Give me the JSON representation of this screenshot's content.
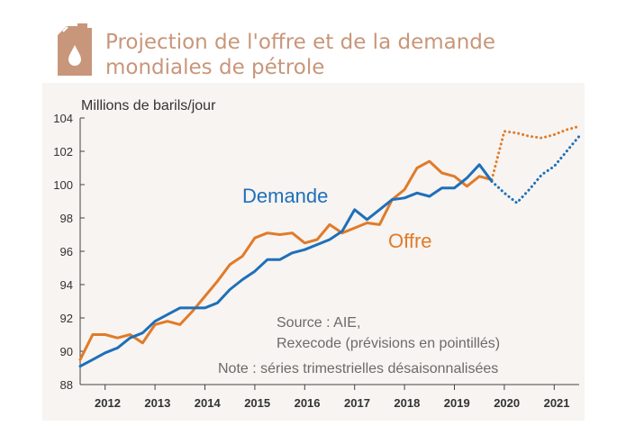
{
  "header": {
    "title_line_1": "Projection de l'offre et de la demande",
    "title_line_2": "mondiales de pétrole",
    "icon": "oil-can-icon",
    "accent_color": "#c8967a"
  },
  "chart_data": {
    "type": "line",
    "title": "Projection de l'offre et de la demande mondiales de pétrole",
    "ylabel": "Millions de barils/jour",
    "xlabel": "",
    "ylim": [
      88,
      104
    ],
    "yticks": [
      88,
      90,
      92,
      94,
      96,
      98,
      100,
      102,
      104
    ],
    "xlim": [
      2011.5,
      2021.5
    ],
    "xtick_labels": [
      "2012",
      "2013",
      "2014",
      "2015",
      "2016",
      "2017",
      "2018",
      "2019",
      "2020",
      "2021"
    ],
    "grid": false,
    "series": [
      {
        "name": "Demande",
        "color": "#1f6fb9",
        "x": [
          2011.5,
          2011.75,
          2012.0,
          2012.25,
          2012.5,
          2012.75,
          2013.0,
          2013.25,
          2013.5,
          2013.75,
          2014.0,
          2014.25,
          2014.5,
          2014.75,
          2015.0,
          2015.25,
          2015.5,
          2015.75,
          2016.0,
          2016.25,
          2016.5,
          2016.75,
          2017.0,
          2017.25,
          2017.5,
          2017.75,
          2018.0,
          2018.25,
          2018.5,
          2018.75,
          2019.0,
          2019.25,
          2019.5,
          2019.75
        ],
        "values": [
          89.1,
          89.5,
          89.9,
          90.2,
          90.8,
          91.1,
          91.8,
          92.2,
          92.6,
          92.6,
          92.6,
          92.9,
          93.7,
          94.3,
          94.8,
          95.5,
          95.5,
          95.9,
          96.1,
          96.4,
          96.7,
          97.2,
          98.5,
          97.9,
          98.5,
          99.1,
          99.2,
          99.5,
          99.3,
          99.8,
          99.8,
          100.4,
          101.2,
          100.2
        ],
        "projection": {
          "x": [
            2019.75,
            2020.0,
            2020.25,
            2020.5,
            2020.75,
            2021.0,
            2021.25,
            2021.5
          ],
          "values": [
            100.2,
            99.5,
            98.9,
            99.7,
            100.6,
            101.1,
            102.0,
            102.9
          ]
        }
      },
      {
        "name": "Offre",
        "color": "#e07b2a",
        "x": [
          2011.5,
          2011.75,
          2012.0,
          2012.25,
          2012.5,
          2012.75,
          2013.0,
          2013.25,
          2013.5,
          2013.75,
          2014.0,
          2014.25,
          2014.5,
          2014.75,
          2015.0,
          2015.25,
          2015.5,
          2015.75,
          2016.0,
          2016.25,
          2016.5,
          2016.75,
          2017.0,
          2017.25,
          2017.5,
          2017.75,
          2018.0,
          2018.25,
          2018.5,
          2018.75,
          2019.0,
          2019.25,
          2019.5,
          2019.75
        ],
        "values": [
          89.5,
          91.0,
          91.0,
          90.8,
          91.0,
          90.5,
          91.6,
          91.8,
          91.6,
          92.4,
          93.3,
          94.2,
          95.2,
          95.7,
          96.8,
          97.1,
          97.0,
          97.1,
          96.5,
          96.7,
          97.6,
          97.1,
          97.4,
          97.7,
          97.6,
          99.1,
          99.7,
          101.0,
          101.4,
          100.7,
          100.5,
          99.9,
          100.5,
          100.3
        ],
        "projection": {
          "x": [
            2019.75,
            2020.0,
            2020.25,
            2020.5,
            2020.75,
            2021.0,
            2021.25,
            2021.5
          ],
          "values": [
            100.3,
            103.2,
            103.1,
            102.9,
            102.8,
            103.0,
            103.3,
            103.5
          ]
        }
      }
    ],
    "annotations": {
      "source_line_1": "Source : AIE,",
      "source_line_2": "Rexecode (prévisions en pointillés)",
      "note": "Note : séries trimestrielles désaisonnalisées"
    }
  }
}
